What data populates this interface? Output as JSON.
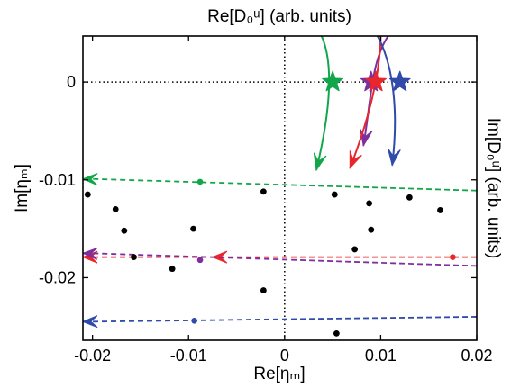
{
  "chart_data": {
    "type": "scatter",
    "title": "",
    "top_label": "Re[D₀ᵘ] (arb. units)",
    "xlabel": "Re[ηₘ]",
    "ylabel": "Im[ηₘ]",
    "right_label": "Im[D₀ᵘ] (arb. units)",
    "xlim": [
      -0.021,
      0.02
    ],
    "ylim": [
      -0.0264,
      0.0047
    ],
    "xticks": [
      -0.02,
      -0.01,
      0,
      0.01,
      0.02
    ],
    "xtick_labels": [
      "-0.02",
      "-0.01",
      "0",
      "0.01",
      "0.02"
    ],
    "yticks": [
      0,
      -0.01,
      -0.02
    ],
    "ytick_labels": [
      "0",
      "-0.01",
      "-0.02"
    ],
    "grid": false,
    "zero_lines": "dotted",
    "colors": {
      "green": "#12a64b",
      "purple": "#7e2f9e",
      "red": "#e8262c",
      "blue": "#2f4aa8",
      "black": "#000000"
    },
    "black_points": [
      {
        "x": -0.0205,
        "y": -0.0115
      },
      {
        "x": -0.0176,
        "y": -0.013
      },
      {
        "x": -0.0167,
        "y": -0.0152
      },
      {
        "x": -0.0157,
        "y": -0.0179
      },
      {
        "x": -0.0117,
        "y": -0.0191
      },
      {
        "x": -0.0095,
        "y": -0.015
      },
      {
        "x": -0.0022,
        "y": -0.0112
      },
      {
        "x": -0.0022,
        "y": -0.0213
      },
      {
        "x": 0.0052,
        "y": -0.0115
      },
      {
        "x": 0.0054,
        "y": -0.0257
      },
      {
        "x": 0.0073,
        "y": -0.0171
      },
      {
        "x": 0.0088,
        "y": -0.0124
      },
      {
        "x": 0.009,
        "y": -0.0151
      },
      {
        "x": 0.013,
        "y": -0.0118
      },
      {
        "x": 0.0162,
        "y": -0.0131
      }
    ],
    "dashed_series": [
      {
        "color": "green",
        "x": [
          0.02,
          -0.021
        ],
        "y": [
          -0.0111,
          -0.0099
        ],
        "dot": {
          "x": -0.0088,
          "y": -0.0102
        },
        "mid_arrow": false
      },
      {
        "color": "red",
        "x": [
          0.02,
          -0.021
        ],
        "y": [
          -0.0179,
          -0.0179
        ],
        "dot": {
          "x": 0.0175,
          "y": -0.0179
        },
        "mid_arrow": true,
        "mid_arrow_x": -0.0075
      },
      {
        "color": "purple",
        "x": [
          0.02,
          -0.021
        ],
        "y": [
          -0.0188,
          -0.0175
        ],
        "dot": {
          "x": -0.0088,
          "y": -0.0182
        },
        "mid_arrow": false
      },
      {
        "color": "blue",
        "x": [
          0.02,
          -0.021
        ],
        "y": [
          -0.024,
          -0.0245
        ],
        "dot": {
          "x": -0.0094,
          "y": -0.0244
        },
        "mid_arrow": false
      }
    ],
    "curves": [
      {
        "color": "green",
        "x": [
          0.0037,
          0.005,
          0.005,
          0.0033
        ],
        "y": [
          0.005,
          0.0025,
          -0.002,
          -0.009
        ]
      },
      {
        "color": "purple",
        "x": [
          0.011,
          0.009,
          0.009,
          0.0082
        ],
        "y": [
          0.005,
          0.0025,
          -0.002,
          -0.0065
        ]
      },
      {
        "color": "red",
        "x": [
          0.01,
          0.01,
          0.0095,
          0.0068
        ],
        "y": [
          0.005,
          0.0025,
          -0.002,
          -0.0088
        ]
      },
      {
        "color": "blue",
        "x": [
          0.0095,
          0.011,
          0.012,
          0.0112
        ],
        "y": [
          0.005,
          0.0025,
          -0.002,
          -0.0085
        ]
      }
    ],
    "stars": [
      {
        "color": "green",
        "x": 0.005,
        "y": 0.0
      },
      {
        "color": "purple",
        "x": 0.009,
        "y": 0.0
      },
      {
        "color": "red",
        "x": 0.0095,
        "y": 0.0
      },
      {
        "color": "blue",
        "x": 0.012,
        "y": 0.0
      }
    ]
  }
}
